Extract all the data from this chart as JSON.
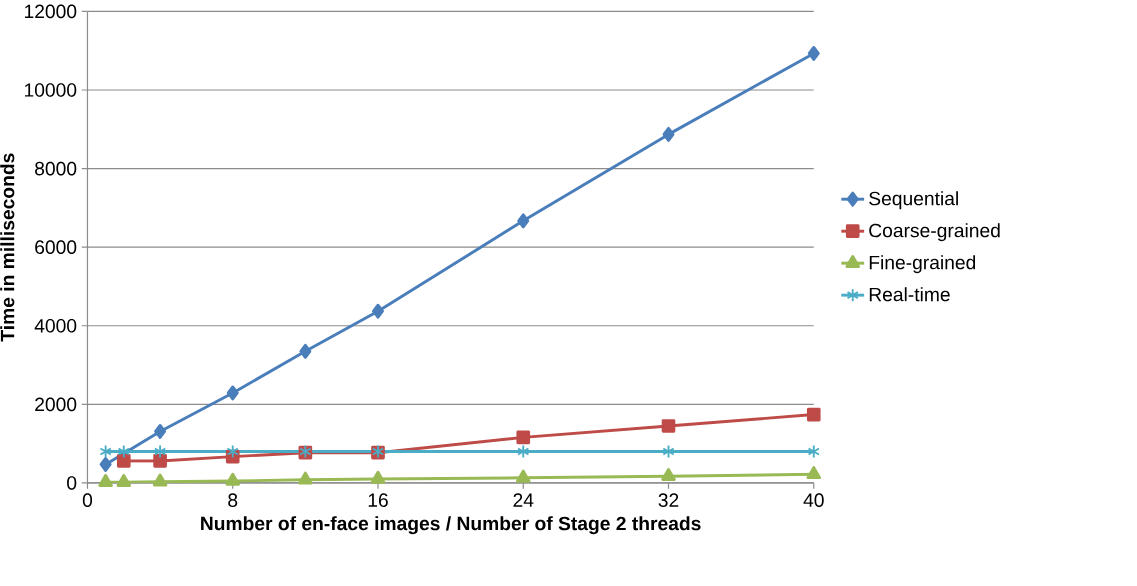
{
  "chart_data": {
    "type": "line",
    "xlabel": "Number of en-face images / Number of Stage 2 threads",
    "ylabel": "Time in milliseconds",
    "xlim": [
      0,
      40
    ],
    "xticks": [
      0,
      8,
      16,
      24,
      32,
      40
    ],
    "ylim": [
      0,
      12000
    ],
    "yticks": [
      0,
      2000,
      4000,
      6000,
      8000,
      10000,
      12000
    ],
    "grid": "y",
    "legend": "right",
    "series": [
      {
        "name": "Sequential",
        "color": "#4a7ebb",
        "marker": "diamond",
        "x": [
          1,
          2,
          4,
          8,
          12,
          16,
          24,
          32,
          40
        ],
        "values": [
          470,
          null,
          1310,
          2290,
          3350,
          4370,
          6670,
          8870,
          10930
        ]
      },
      {
        "name": "Coarse-grained",
        "color": "#be4b48",
        "marker": "square",
        "x": [
          2,
          4,
          8,
          12,
          16,
          24,
          32,
          40
        ],
        "values": [
          560,
          560,
          670,
          770,
          770,
          1160,
          1450,
          1740
        ]
      },
      {
        "name": "Fine-grained",
        "color": "#98b954",
        "marker": "triangle",
        "x": [
          1,
          2,
          4,
          8,
          12,
          16,
          24,
          32,
          40
        ],
        "values": [
          20,
          20,
          30,
          50,
          80,
          100,
          130,
          170,
          220
        ]
      },
      {
        "name": "Real-time",
        "color": "#4bacc6",
        "marker": "cross",
        "x": [
          1,
          2,
          4,
          8,
          12,
          16,
          24,
          32,
          40
        ],
        "values": [
          800,
          800,
          800,
          800,
          800,
          800,
          800,
          800,
          800
        ]
      }
    ]
  }
}
